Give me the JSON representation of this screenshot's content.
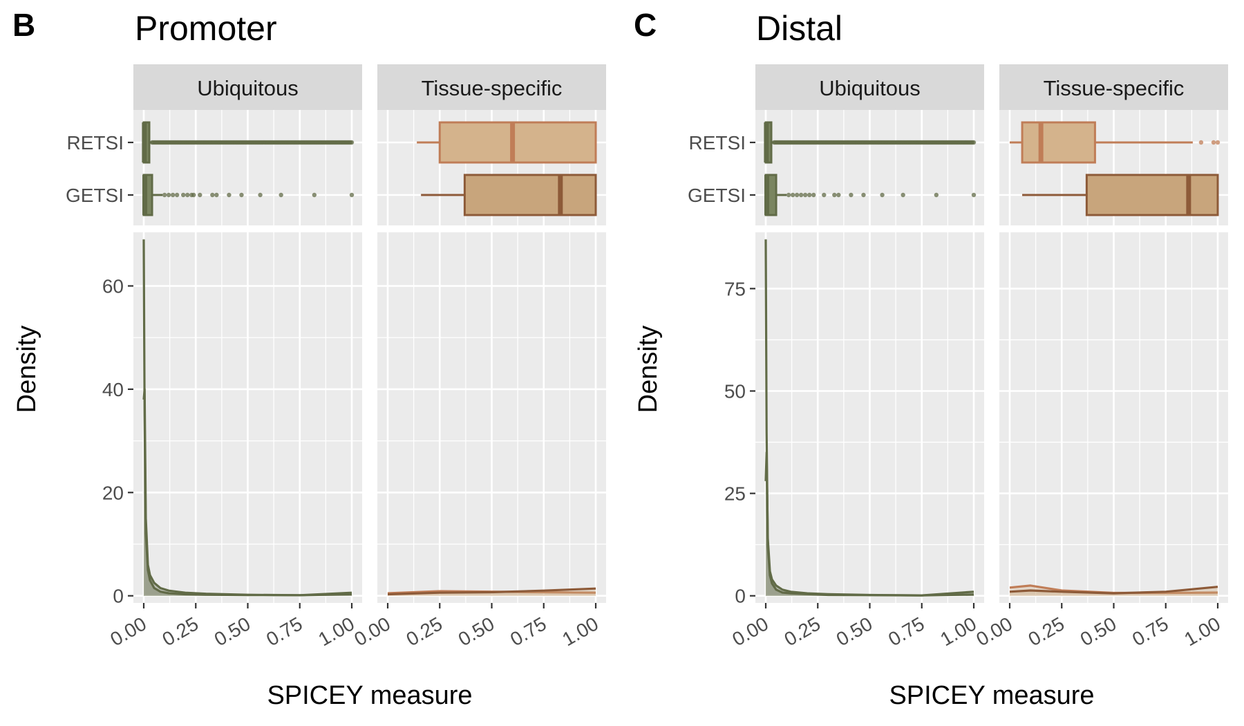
{
  "figure": {
    "colors": {
      "panel_bg": "#ebebeb",
      "grid": "#ffffff",
      "strip_bg": "#d9d9d9",
      "ubiquitous": "#616b47",
      "retsi_specific_fill": "#d4b38c",
      "retsi_specific_line": "#c07d57",
      "getsi_specific_fill": "#c8a57c",
      "getsi_specific_line": "#8d5a38"
    }
  },
  "chart_data": [
    {
      "panel_letter": "B",
      "title": "Promoter",
      "type": "boxplot+density",
      "xlabel": "SPICEY measure",
      "ylabel": "Density",
      "xlim": [
        0,
        1
      ],
      "x_ticks": [
        "0.00",
        "0.25",
        "0.50",
        "0.75",
        "1.00"
      ],
      "ylim": [
        0,
        69
      ],
      "y_ticks": [
        0,
        20,
        40,
        60
      ],
      "facets": [
        "Ubiquitous",
        "Tissue-specific"
      ],
      "box_categories": [
        "RETSI",
        "GETSI"
      ],
      "boxplots": {
        "Ubiquitous": {
          "RETSI": {
            "min": 0.0,
            "q1": 0.0,
            "median": 0.003,
            "q3": 0.02,
            "max": 0.04,
            "outliers": "many, 0.04 to 1.00"
          },
          "GETSI": {
            "min": 0.0,
            "q1": 0.0,
            "median": 0.005,
            "q3": 0.04,
            "max": 0.09,
            "outliers": [
              0.1,
              0.12,
              0.14,
              0.16,
              0.19,
              0.21,
              0.23,
              0.24,
              0.27,
              0.33,
              0.35,
              0.41,
              0.47,
              0.56,
              0.66,
              0.82,
              1.0
            ]
          }
        },
        "Tissue-specific": {
          "RETSI": {
            "min": 0.14,
            "q1": 0.25,
            "median": 0.6,
            "q3": 1.0,
            "max": 1.0,
            "outliers": []
          },
          "GETSI": {
            "min": 0.16,
            "q1": 0.37,
            "median": 0.83,
            "q3": 1.0,
            "max": 1.0,
            "outliers": []
          }
        }
      },
      "density": {
        "Ubiquitous": {
          "x": [
            0.0,
            0.004,
            0.01,
            0.02,
            0.03,
            0.05,
            0.08,
            0.12,
            0.2,
            0.3,
            0.5,
            0.75,
            1.0
          ],
          "series": [
            {
              "name": "RETSI",
              "values": [
                69,
                35,
                12,
                5,
                3,
                1.5,
                0.8,
                0.5,
                0.3,
                0.2,
                0.15,
                0.1,
                0.3
              ]
            },
            {
              "name": "GETSI",
              "values": [
                38,
                40,
                15,
                6,
                4,
                2.5,
                1.5,
                1.0,
                0.6,
                0.4,
                0.2,
                0.1,
                0.6
              ]
            }
          ]
        },
        "Tissue-specific": {
          "x": [
            0.0,
            0.25,
            0.5,
            0.75,
            1.0
          ],
          "series": [
            {
              "name": "RETSI",
              "values": [
                0.5,
                0.9,
                0.8,
                0.7,
                0.6
              ]
            },
            {
              "name": "GETSI",
              "values": [
                0.3,
                0.6,
                0.7,
                1.0,
                1.4
              ]
            }
          ]
        }
      }
    },
    {
      "panel_letter": "C",
      "title": "Distal",
      "type": "boxplot+density",
      "xlabel": "SPICEY measure",
      "ylabel": "Density",
      "xlim": [
        0,
        1
      ],
      "x_ticks": [
        "0.00",
        "0.25",
        "0.50",
        "0.75",
        "1.00"
      ],
      "ylim": [
        0,
        87
      ],
      "y_ticks": [
        0,
        25,
        50,
        75
      ],
      "facets": [
        "Ubiquitous",
        "Tissue-specific"
      ],
      "box_categories": [
        "RETSI",
        "GETSI"
      ],
      "boxplots": {
        "Ubiquitous": {
          "RETSI": {
            "min": 0.0,
            "q1": 0.0,
            "median": 0.003,
            "q3": 0.02,
            "max": 0.04,
            "outliers": "many, 0.04 to 1.00"
          },
          "GETSI": {
            "min": 0.0,
            "q1": 0.0,
            "median": 0.005,
            "q3": 0.05,
            "max": 0.1,
            "outliers": [
              0.11,
              0.13,
              0.15,
              0.17,
              0.19,
              0.21,
              0.23,
              0.28,
              0.33,
              0.35,
              0.41,
              0.47,
              0.56,
              0.66,
              0.82,
              1.0
            ]
          }
        },
        "Tissue-specific": {
          "RETSI": {
            "min": 0.0,
            "q1": 0.06,
            "median": 0.15,
            "q3": 0.41,
            "max": 0.88,
            "outliers": [
              0.92,
              0.98,
              1.0
            ]
          },
          "GETSI": {
            "min": 0.06,
            "q1": 0.37,
            "median": 0.86,
            "q3": 1.0,
            "max": 1.0,
            "outliers": []
          }
        }
      },
      "density": {
        "Ubiquitous": {
          "x": [
            0.0,
            0.004,
            0.01,
            0.02,
            0.03,
            0.05,
            0.08,
            0.12,
            0.2,
            0.3,
            0.5,
            0.75,
            1.0
          ],
          "series": [
            {
              "name": "RETSI",
              "values": [
                87,
                40,
                12,
                5,
                3,
                1.5,
                0.8,
                0.6,
                0.4,
                0.2,
                0.15,
                0.1,
                0.3
              ]
            },
            {
              "name": "GETSI",
              "values": [
                28,
                35,
                14,
                6,
                4,
                2.5,
                1.5,
                1.0,
                0.6,
                0.4,
                0.2,
                0.1,
                1.0
              ]
            }
          ]
        },
        "Tissue-specific": {
          "x": [
            0.0,
            0.1,
            0.25,
            0.5,
            0.75,
            1.0
          ],
          "series": [
            {
              "name": "RETSI",
              "values": [
                2.0,
                2.5,
                1.3,
                0.7,
                0.7,
                0.8
              ]
            },
            {
              "name": "GETSI",
              "values": [
                1.0,
                1.3,
                1.0,
                0.6,
                1.0,
                2.2
              ]
            }
          ]
        }
      }
    }
  ]
}
